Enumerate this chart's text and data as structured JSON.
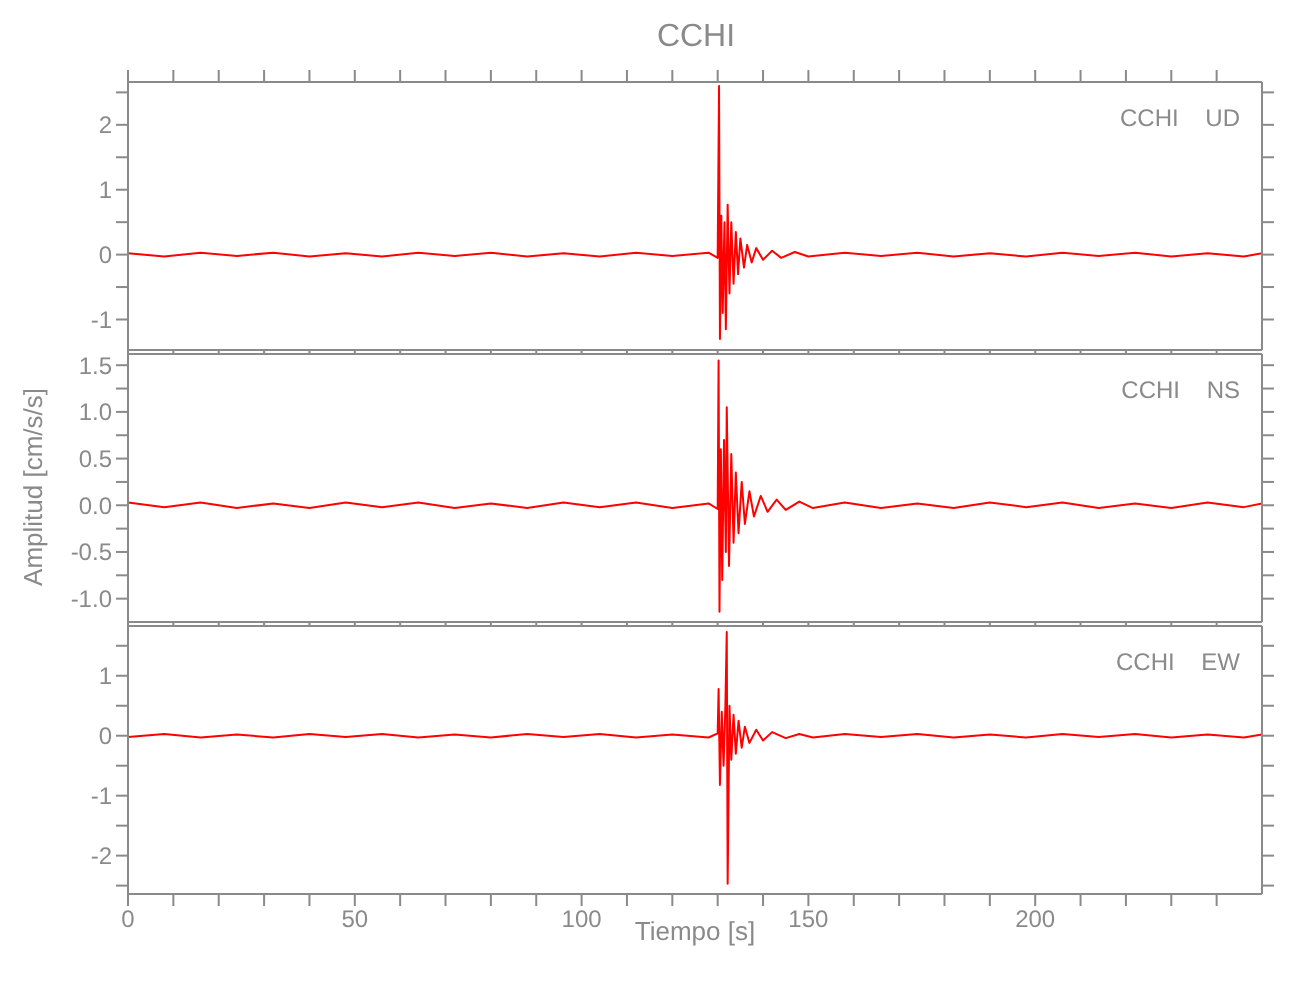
{
  "chart_data": [
    {
      "type": "line",
      "title": "CCHI",
      "annotations": [
        "CCHI    UD"
      ],
      "xlim": [
        0,
        250
      ],
      "xticks": [
        0,
        {
          "value": 10,
          "label": null
        },
        {
          "value": 20,
          "label": null
        },
        {
          "value": 30,
          "label": null
        },
        {
          "value": 40,
          "label": null
        },
        50,
        {
          "value": 60,
          "label": null
        },
        {
          "value": 70,
          "label": null
        },
        {
          "value": 80,
          "label": null
        },
        {
          "value": 90,
          "label": null
        },
        100,
        {
          "value": 110,
          "label": null
        },
        {
          "value": 120,
          "label": null
        },
        {
          "value": 130,
          "label": null
        },
        {
          "value": 140,
          "label": null
        },
        150,
        {
          "value": 160,
          "label": null
        },
        {
          "value": 170,
          "label": null
        },
        {
          "value": 180,
          "label": null
        },
        {
          "value": 190,
          "label": null
        },
        200,
        {
          "value": 210,
          "label": null
        },
        {
          "value": 220,
          "label": null
        },
        {
          "value": 230,
          "label": null
        },
        {
          "value": 240,
          "label": null
        }
      ],
      "ylim": [
        -1.47,
        2.66
      ],
      "yticks": [
        -1,
        {
          "value": -0.5,
          "label": null
        },
        0,
        {
          "value": 0.5,
          "label": null
        },
        1,
        {
          "value": 1.5,
          "label": null
        },
        2,
        {
          "value": 2.5,
          "label": null
        }
      ],
      "tick_labels": "y",
      "marker": "none",
      "line_style": "solid",
      "series": [
        {
          "color": "#ff0000",
          "x": [
            0,
            8,
            16,
            24,
            32,
            40,
            48,
            56,
            64,
            72,
            80,
            88,
            96,
            104,
            112,
            120,
            128,
            130,
            130.3,
            130.5,
            130.8,
            131.1,
            131.5,
            131.8,
            132.2,
            132.6,
            133,
            133.5,
            134,
            134.5,
            135,
            135.8,
            136.5,
            137.5,
            138.5,
            140,
            142,
            144,
            147,
            150,
            158,
            166,
            174,
            182,
            190,
            198,
            206,
            214,
            222,
            230,
            238,
            246,
            250
          ],
          "values": [
            0.02,
            -0.03,
            0.03,
            -0.02,
            0.03,
            -0.03,
            0.02,
            -0.03,
            0.03,
            -0.02,
            0.03,
            -0.03,
            0.02,
            -0.03,
            0.03,
            -0.02,
            0.03,
            -0.05,
            2.6,
            -1.3,
            0.6,
            -0.9,
            0.5,
            -1.15,
            0.77,
            -0.6,
            0.5,
            -0.45,
            0.35,
            -0.3,
            0.25,
            -0.2,
            0.15,
            -0.12,
            0.1,
            -0.08,
            0.06,
            -0.05,
            0.04,
            -0.03,
            0.03,
            -0.02,
            0.03,
            -0.03,
            0.02,
            -0.03,
            0.03,
            -0.02,
            0.03,
            -0.03,
            0.02,
            -0.03,
            0.02
          ]
        }
      ]
    },
    {
      "type": "line",
      "ylabel": "Amplitud [cm/s/s]",
      "annotations": [
        "CCHI    NS"
      ],
      "xlim": [
        0,
        250
      ],
      "xticks": [
        0,
        {
          "value": 10,
          "label": null
        },
        {
          "value": 20,
          "label": null
        },
        {
          "value": 30,
          "label": null
        },
        {
          "value": 40,
          "label": null
        },
        50,
        {
          "value": 60,
          "label": null
        },
        {
          "value": 70,
          "label": null
        },
        {
          "value": 80,
          "label": null
        },
        {
          "value": 90,
          "label": null
        },
        100,
        {
          "value": 110,
          "label": null
        },
        {
          "value": 120,
          "label": null
        },
        {
          "value": 130,
          "label": null
        },
        {
          "value": 140,
          "label": null
        },
        150,
        {
          "value": 160,
          "label": null
        },
        {
          "value": 170,
          "label": null
        },
        {
          "value": 180,
          "label": null
        },
        {
          "value": 190,
          "label": null
        },
        200,
        {
          "value": 210,
          "label": null
        },
        {
          "value": 220,
          "label": null
        },
        {
          "value": 230,
          "label": null
        },
        {
          "value": 240,
          "label": null
        }
      ],
      "ylim": [
        -1.25,
        1.62
      ],
      "yticks": [
        {
          "value": -1,
          "label": "-1.0"
        },
        {
          "value": -0.75,
          "label": null
        },
        {
          "value": -0.5,
          "label": "-0.5"
        },
        {
          "value": -0.25,
          "label": null
        },
        {
          "value": 0,
          "label": "0.0"
        },
        {
          "value": 0.25,
          "label": null
        },
        {
          "value": 0.5,
          "label": "0.5"
        },
        {
          "value": 0.75,
          "label": null
        },
        {
          "value": 1,
          "label": "1.0"
        },
        {
          "value": 1.25,
          "label": null
        },
        {
          "value": 1.5,
          "label": "1.5"
        }
      ],
      "tick_labels": "y",
      "marker": "none",
      "line_style": "solid",
      "series": [
        {
          "color": "#ff0000",
          "x": [
            0,
            8,
            16,
            24,
            32,
            40,
            48,
            56,
            64,
            72,
            80,
            88,
            96,
            104,
            112,
            120,
            128,
            130,
            130.2,
            130.4,
            130.7,
            131,
            131.4,
            131.8,
            132,
            132.5,
            133,
            133.5,
            134,
            134.6,
            135.3,
            136,
            137,
            138,
            139.5,
            141,
            143,
            145,
            148,
            151,
            158,
            166,
            174,
            182,
            190,
            198,
            206,
            214,
            222,
            230,
            238,
            246,
            250
          ],
          "values": [
            0.03,
            -0.02,
            0.03,
            -0.03,
            0.02,
            -0.03,
            0.03,
            -0.02,
            0.03,
            -0.03,
            0.02,
            -0.03,
            0.03,
            -0.02,
            0.03,
            -0.03,
            0.02,
            -0.04,
            1.55,
            -1.14,
            0.6,
            -0.8,
            0.7,
            -0.5,
            1.05,
            -0.65,
            0.55,
            -0.4,
            0.35,
            -0.3,
            0.25,
            -0.2,
            0.15,
            -0.12,
            0.1,
            -0.07,
            0.06,
            -0.05,
            0.04,
            -0.03,
            0.03,
            -0.03,
            0.02,
            -0.03,
            0.03,
            -0.02,
            0.03,
            -0.03,
            0.02,
            -0.03,
            0.03,
            -0.02,
            0.02
          ]
        }
      ]
    },
    {
      "type": "line",
      "xlabel": "Tiempo [s]",
      "annotations": [
        "CCHI    EW"
      ],
      "xlim": [
        0,
        250
      ],
      "xticks": [
        0,
        {
          "value": 10,
          "label": null
        },
        {
          "value": 20,
          "label": null
        },
        {
          "value": 30,
          "label": null
        },
        {
          "value": 40,
          "label": null
        },
        50,
        {
          "value": 60,
          "label": null
        },
        {
          "value": 70,
          "label": null
        },
        {
          "value": 80,
          "label": null
        },
        {
          "value": 90,
          "label": null
        },
        100,
        {
          "value": 110,
          "label": null
        },
        {
          "value": 120,
          "label": null
        },
        {
          "value": 130,
          "label": null
        },
        {
          "value": 140,
          "label": null
        },
        150,
        {
          "value": 160,
          "label": null
        },
        {
          "value": 170,
          "label": null
        },
        {
          "value": 180,
          "label": null
        },
        {
          "value": 190,
          "label": null
        },
        200,
        {
          "value": 210,
          "label": null
        },
        {
          "value": 220,
          "label": null
        },
        {
          "value": 230,
          "label": null
        },
        {
          "value": 240,
          "label": null
        }
      ],
      "ylim": [
        -2.64,
        1.83
      ],
      "yticks": [
        {
          "value": -2.5,
          "label": null
        },
        -2,
        {
          "value": -1.5,
          "label": null
        },
        -1,
        {
          "value": -0.5,
          "label": null
        },
        0,
        {
          "value": 0.5,
          "label": null
        },
        1,
        {
          "value": 1.5,
          "label": null
        }
      ],
      "marker": "none",
      "line_style": "solid",
      "series": [
        {
          "color": "#ff0000",
          "x": [
            0,
            8,
            16,
            24,
            32,
            40,
            48,
            56,
            64,
            72,
            80,
            88,
            96,
            104,
            112,
            120,
            128,
            130,
            130.2,
            130.5,
            130.9,
            131.3,
            131.7,
            132,
            132.2,
            132.6,
            133,
            133.5,
            134,
            134.6,
            135.3,
            136,
            137,
            138.5,
            140,
            142,
            145,
            148,
            151,
            158,
            166,
            174,
            182,
            190,
            198,
            206,
            214,
            222,
            230,
            238,
            246,
            250
          ],
          "values": [
            -0.02,
            0.03,
            -0.03,
            0.02,
            -0.03,
            0.03,
            -0.02,
            0.03,
            -0.03,
            0.02,
            -0.03,
            0.03,
            -0.02,
            0.03,
            -0.03,
            0.02,
            -0.03,
            0.04,
            0.78,
            -0.82,
            0.4,
            -0.5,
            0.5,
            1.73,
            -2.47,
            0.5,
            -0.4,
            0.35,
            -0.3,
            0.25,
            -0.2,
            0.15,
            -0.12,
            0.1,
            -0.08,
            0.06,
            -0.04,
            0.03,
            -0.03,
            0.03,
            -0.02,
            0.03,
            -0.03,
            0.02,
            -0.03,
            0.03,
            -0.02,
            0.03,
            -0.03,
            0.02,
            -0.03,
            0.02
          ]
        }
      ]
    }
  ]
}
